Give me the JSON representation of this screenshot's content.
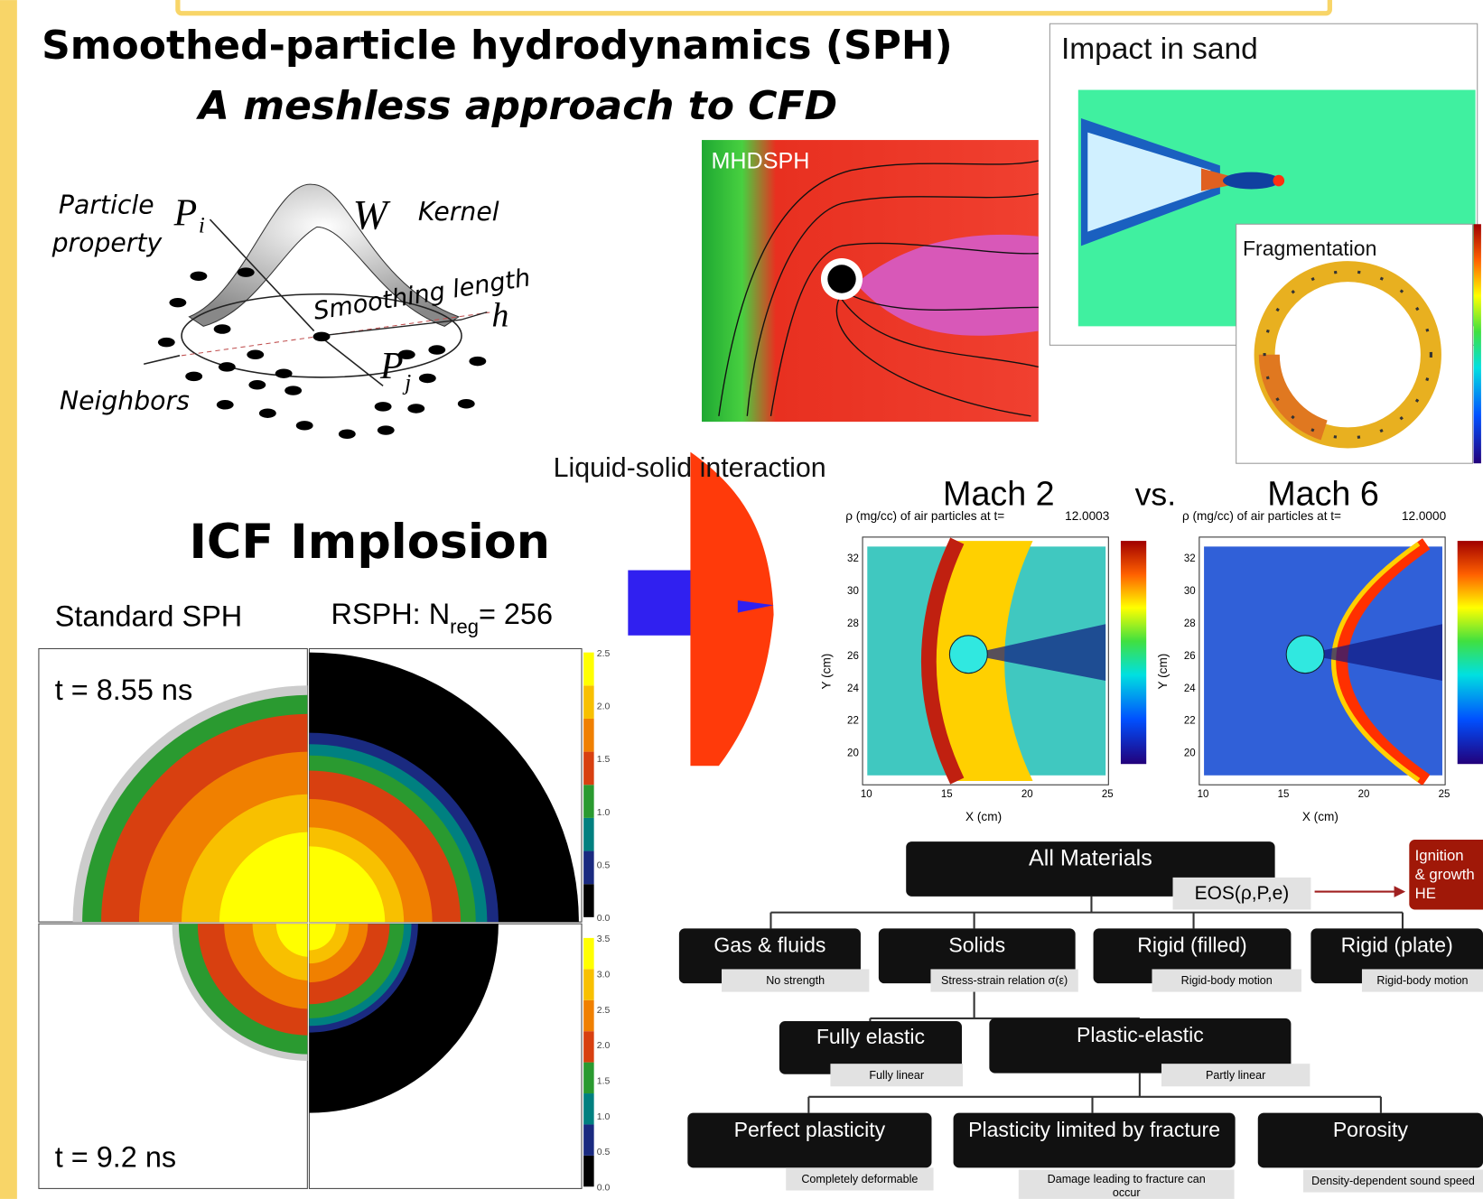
{
  "header": {
    "title": "Smoothed-particle hydrodynamics (SPH)",
    "subtitle": "A meshless approach to CFD"
  },
  "kernel_diagram": {
    "particle": "Particle",
    "property": "property",
    "p_i": "P",
    "p_i_sub": "i",
    "w": "W",
    "kernel": "Kernel",
    "smoothing": "Smoothing length",
    "h": "h",
    "p_j": "P",
    "p_j_sub": "j",
    "neighbors": "Neighbors"
  },
  "images": {
    "mhdsph": "MHDSPH",
    "impact": "Impact in sand",
    "fragmentation": "Fragmentation",
    "liquid_solid": "Liquid-solid interaction"
  },
  "icf": {
    "title": "ICF Implosion",
    "standard": "Standard SPH",
    "rsph": "RSPH: N",
    "rsph_sub": "reg",
    "rsph_rest": "= 256",
    "t1": "t = 8.55 ns",
    "t2": "t = 9.2 ns",
    "colorbar_top": [
      "2.5",
      "2.0",
      "1.5",
      "1.0",
      "0.5",
      "0.0"
    ],
    "colorbar_bottom": [
      "3.5",
      "3.0",
      "2.5",
      "2.0",
      "1.5",
      "1.0",
      "0.5",
      "0.0"
    ]
  },
  "mach": {
    "mach2": "Mach 2",
    "vs": "vs.",
    "mach6": "Mach 6",
    "plot_title": "ρ (mg/cc) of air particles at t=",
    "time2": "12.0003",
    "time6": "12.0000",
    "ylabel": "Y (cm)",
    "xlabel": "X (cm)",
    "yticks": [
      "32",
      "30",
      "28",
      "26",
      "24",
      "22",
      "20"
    ],
    "xticks": [
      "10",
      "15",
      "20",
      "25"
    ]
  },
  "tree": {
    "root": "All Materials",
    "eos": "EOS(ρ,P,e)",
    "ignition": [
      "Ignition",
      "& growth",
      "HE"
    ],
    "nodes": [
      {
        "label": "Gas & fluids",
        "note": "No strength"
      },
      {
        "label": "Solids",
        "note": "Stress-strain relation σ(ε)"
      },
      {
        "label": "Rigid (filled)",
        "note": "Rigid-body motion"
      },
      {
        "label": "Rigid (plate)",
        "note": "Rigid-body motion"
      },
      {
        "label": "Fully elastic",
        "note": "Fully linear"
      },
      {
        "label": "Plastic-elastic",
        "note": "Partly linear"
      },
      {
        "label": "Perfect plasticity",
        "note": "Completely deformable"
      },
      {
        "label": "Plasticity limited by fracture",
        "note": "Damage leading to fracture can",
        "note2": "occur"
      },
      {
        "label": "Porosity",
        "note": "Density-dependent sound speed"
      }
    ]
  }
}
